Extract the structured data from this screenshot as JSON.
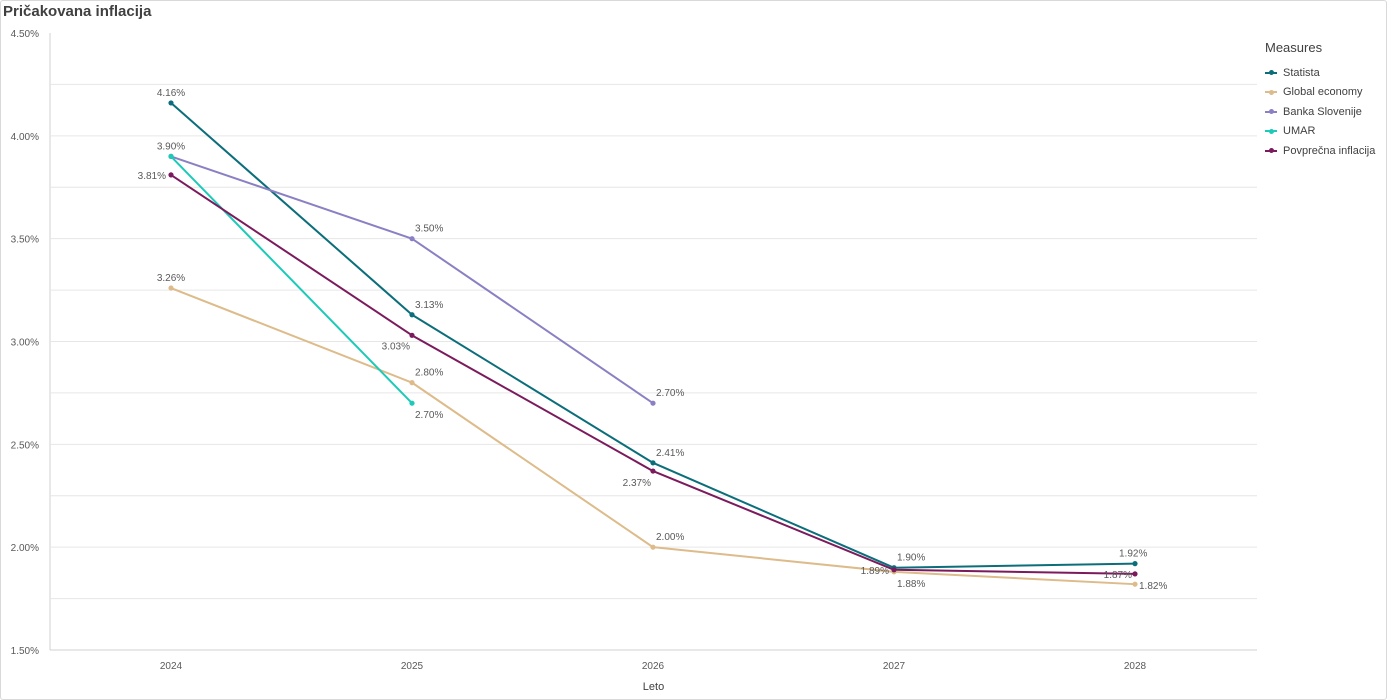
{
  "title": "Pričakovana inflacija",
  "chart_data": {
    "type": "line",
    "title": "Pričakovana inflacija",
    "xlabel": "Leto",
    "ylabel": "",
    "categories": [
      "2024",
      "2025",
      "2026",
      "2027",
      "2028"
    ],
    "ylim": [
      1.5,
      4.5
    ],
    "yticks": [
      1.5,
      2.0,
      2.5,
      3.0,
      3.5,
      4.0,
      4.5
    ],
    "ytick_labels": [
      "1.50%",
      "2.00%",
      "2.50%",
      "3.00%",
      "3.50%",
      "4.00%",
      "4.50%"
    ],
    "grid": true,
    "legend_title": "Measures",
    "legend_position": "right",
    "series": [
      {
        "name": "Statista",
        "color": "#0b6e7a",
        "values": [
          4.16,
          3.13,
          2.41,
          1.9,
          1.92
        ],
        "labels": [
          "4.16%",
          "3.13%",
          "2.41%",
          "1.90%",
          "1.92%"
        ]
      },
      {
        "name": "Global economy",
        "color": "#ddbb8a",
        "values": [
          3.26,
          2.8,
          2.0,
          1.88,
          1.82
        ],
        "labels": [
          "3.26%",
          "2.80%",
          "2.00%",
          "1.88%",
          "1.82%"
        ]
      },
      {
        "name": "Banka Slovenije",
        "color": "#8a80c4",
        "values": [
          3.9,
          3.5,
          2.7,
          null,
          null
        ],
        "labels": [
          "3.90%",
          "3.50%",
          "2.70%",
          null,
          null
        ]
      },
      {
        "name": "UMAR",
        "color": "#1ccab8",
        "values": [
          3.9,
          2.7,
          null,
          null,
          null
        ],
        "labels": [
          null,
          "2.70%",
          null,
          null,
          null
        ]
      },
      {
        "name": "Povprečna inflacija",
        "color": "#7b1a5c",
        "values": [
          3.81,
          3.03,
          2.37,
          1.89,
          1.87
        ],
        "labels": [
          "3.81%",
          "3.03%",
          "2.37%",
          "1.89%",
          "1.87%"
        ]
      }
    ]
  }
}
